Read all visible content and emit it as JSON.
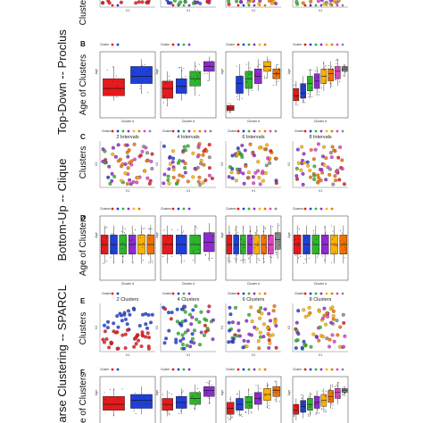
{
  "colors": {
    "cluster": [
      "#e41a1c",
      "#1f3fd6",
      "#2db52d",
      "#8e2bd0",
      "#ffb000",
      "#f07000",
      "#e040c0",
      "#8a8a8a"
    ],
    "frame": "#333333",
    "whisker": "#111111"
  },
  "group_labels": {
    "topdown": "Top-Down -- Proclus",
    "bottomup": "Bottom-Up -- Clique",
    "sparse": "parse Clustering -- SPARCL"
  },
  "row_labels": {
    "clusters": "Clusters",
    "age": "Age of Clusters"
  },
  "panel_tags": [
    "B",
    "C",
    "D",
    "E",
    "F"
  ],
  "chart_data": [
    {
      "type": "scatter",
      "tag": "",
      "row": "A (partially visible)",
      "titles": [
        "",
        "",
        "",
        ""
      ],
      "n_clusters": [
        2,
        4,
        6,
        8
      ],
      "xlabel": "V1",
      "ylabel": "V2",
      "legend_title": "Cluster"
    },
    {
      "type": "box",
      "tag": "B",
      "row": "Top-Down Proclus - age",
      "n_clusters": [
        2,
        4,
        6,
        8
      ],
      "xlabel": "Cluster #",
      "ylabel": "Age",
      "legend_title": "Cluster",
      "panels": [
        {
          "boxes": [
            [
              1.0,
              1.2,
              1.5,
              1.9,
              2.4
            ],
            [
              1.3,
              1.7,
              2.0,
              2.4,
              2.7
            ]
          ]
        },
        {
          "boxes": [
            [
              0.8,
              1.1,
              1.5,
              1.8,
              2.2
            ],
            [
              1.0,
              1.3,
              1.6,
              1.9,
              2.4
            ],
            [
              1.2,
              1.6,
              1.9,
              2.2,
              2.6
            ],
            [
              1.8,
              2.2,
              2.4,
              2.6,
              2.8
            ]
          ]
        },
        {
          "boxes": [
            [
              0.5,
              0.6,
              0.7,
              0.8,
              0.9
            ],
            [
              1.0,
              1.3,
              1.7,
              2.0,
              2.5
            ],
            [
              1.2,
              1.5,
              1.9,
              2.2,
              2.6
            ],
            [
              1.4,
              1.7,
              2.0,
              2.3,
              2.7
            ],
            [
              1.9,
              2.2,
              2.4,
              2.6,
              2.8
            ],
            [
              1.6,
              1.9,
              2.1,
              2.3,
              2.5
            ]
          ]
        },
        {
          "boxes": [
            [
              0.8,
              1.0,
              1.2,
              1.5,
              1.8
            ],
            [
              0.9,
              1.1,
              1.3,
              1.7,
              2.0
            ],
            [
              1.1,
              1.4,
              1.7,
              2.0,
              2.3
            ],
            [
              1.2,
              1.5,
              1.8,
              2.1,
              2.4
            ],
            [
              1.4,
              1.7,
              2.0,
              2.3,
              2.6
            ],
            [
              1.5,
              1.8,
              2.1,
              2.3,
              2.6
            ],
            [
              1.6,
              1.9,
              2.2,
              2.4,
              2.7
            ],
            [
              2.0,
              2.2,
              2.3,
              2.4,
              2.5
            ]
          ]
        }
      ]
    },
    {
      "type": "scatter",
      "tag": "C",
      "row": "Bottom-Up Clique - clusters",
      "titles": [
        "2 Intervals",
        "4 Intervals",
        "6 Intervals",
        "8 Intervals"
      ],
      "n_clusters": [
        8,
        8,
        8,
        8
      ],
      "xlabel": "V1",
      "ylabel": "V2",
      "legend_title": "Cluster"
    },
    {
      "type": "box",
      "tag": "D",
      "row": "Bottom-Up Clique - age",
      "n_clusters": [
        6,
        4,
        8,
        6
      ],
      "xlabel": "Cluster #",
      "ylabel": "Age",
      "legend_title": "Clusters",
      "panels": [
        {
          "boxes": [
            [
              1.0,
              1.4,
              1.8,
              2.2,
              2.6
            ],
            [
              1.0,
              1.4,
              1.8,
              2.2,
              2.6
            ],
            [
              1.0,
              1.4,
              1.8,
              2.2,
              2.6
            ],
            [
              1.0,
              1.4,
              1.8,
              2.2,
              2.6
            ],
            [
              1.0,
              1.4,
              1.8,
              2.2,
              2.6
            ],
            [
              1.0,
              1.4,
              1.8,
              2.2,
              2.6
            ]
          ]
        },
        {
          "boxes": [
            [
              1.0,
              1.4,
              1.8,
              2.2,
              2.6
            ],
            [
              1.0,
              1.4,
              1.8,
              2.2,
              2.6
            ],
            [
              1.0,
              1.4,
              1.8,
              2.2,
              2.6
            ],
            [
              1.1,
              1.5,
              1.9,
              2.3,
              2.7
            ]
          ]
        },
        {
          "boxes": [
            [
              1.0,
              1.4,
              1.8,
              2.2,
              2.6
            ],
            [
              1.0,
              1.4,
              1.8,
              2.2,
              2.6
            ],
            [
              1.0,
              1.4,
              1.8,
              2.2,
              2.6
            ],
            [
              1.0,
              1.4,
              1.8,
              2.2,
              2.6
            ],
            [
              1.0,
              1.4,
              1.8,
              2.2,
              2.6
            ],
            [
              1.0,
              1.4,
              1.8,
              2.2,
              2.6
            ],
            [
              1.0,
              1.4,
              1.8,
              2.2,
              2.6
            ],
            [
              1.2,
              1.6,
              2.0,
              2.3,
              2.7
            ]
          ]
        },
        {
          "boxes": [
            [
              1.0,
              1.4,
              1.8,
              2.2,
              2.6
            ],
            [
              1.0,
              1.4,
              1.8,
              2.2,
              2.6
            ],
            [
              1.0,
              1.4,
              1.8,
              2.2,
              2.6
            ],
            [
              1.0,
              1.4,
              1.8,
              2.2,
              2.6
            ],
            [
              1.0,
              1.4,
              1.8,
              2.2,
              2.6
            ],
            [
              1.0,
              1.4,
              1.8,
              2.2,
              2.6
            ]
          ]
        }
      ]
    },
    {
      "type": "scatter",
      "tag": "E",
      "row": "SPARCL - clusters",
      "titles": [
        "2 Clusters",
        "4 Clusters",
        "6 Clusters",
        "8 Clusters"
      ],
      "n_clusters": [
        2,
        4,
        6,
        8
      ],
      "xlabel": "V1",
      "ylabel": "V2",
      "legend_title": "Cluster"
    },
    {
      "type": "box",
      "tag": "F",
      "row": "SPARCL - age (partially visible)",
      "n_clusters": [
        2,
        4,
        6,
        8
      ],
      "xlabel": "",
      "ylabel": "Age",
      "legend_title": "Cluster",
      "panels": [
        {
          "boxes": [
            [
              1.0,
              1.3,
              1.6,
              2.0,
              2.4
            ],
            [
              1.1,
              1.4,
              1.8,
              2.1,
              2.5
            ]
          ]
        },
        {
          "boxes": [
            [
              1.0,
              1.3,
              1.6,
              1.9,
              2.3
            ],
            [
              1.1,
              1.4,
              1.7,
              2.0,
              2.4
            ],
            [
              1.3,
              1.6,
              1.9,
              2.2,
              2.6
            ],
            [
              1.6,
              2.0,
              2.3,
              2.5,
              2.8
            ]
          ]
        },
        {
          "boxes": [
            [
              0.8,
              1.1,
              1.4,
              1.7,
              2.0
            ],
            [
              1.0,
              1.3,
              1.6,
              1.9,
              2.3
            ],
            [
              1.1,
              1.4,
              1.7,
              2.0,
              2.4
            ],
            [
              1.3,
              1.6,
              1.9,
              2.2,
              2.6
            ],
            [
              1.4,
              1.8,
              2.1,
              2.4,
              2.7
            ],
            [
              1.7,
              2.0,
              2.3,
              2.5,
              2.8
            ]
          ]
        },
        {
          "boxes": [
            [
              0.8,
              1.1,
              1.3,
              1.6,
              1.9
            ],
            [
              0.9,
              1.2,
              1.5,
              1.8,
              2.1
            ],
            [
              1.0,
              1.3,
              1.6,
              1.9,
              2.2
            ],
            [
              1.1,
              1.4,
              1.7,
              2.0,
              2.3
            ],
            [
              1.2,
              1.5,
              1.8,
              2.1,
              2.4
            ],
            [
              1.4,
              1.7,
              2.0,
              2.3,
              2.6
            ],
            [
              1.6,
              1.9,
              2.2,
              2.4,
              2.7
            ],
            [
              2.0,
              2.2,
              2.3,
              2.4,
              2.5
            ]
          ]
        }
      ]
    }
  ]
}
